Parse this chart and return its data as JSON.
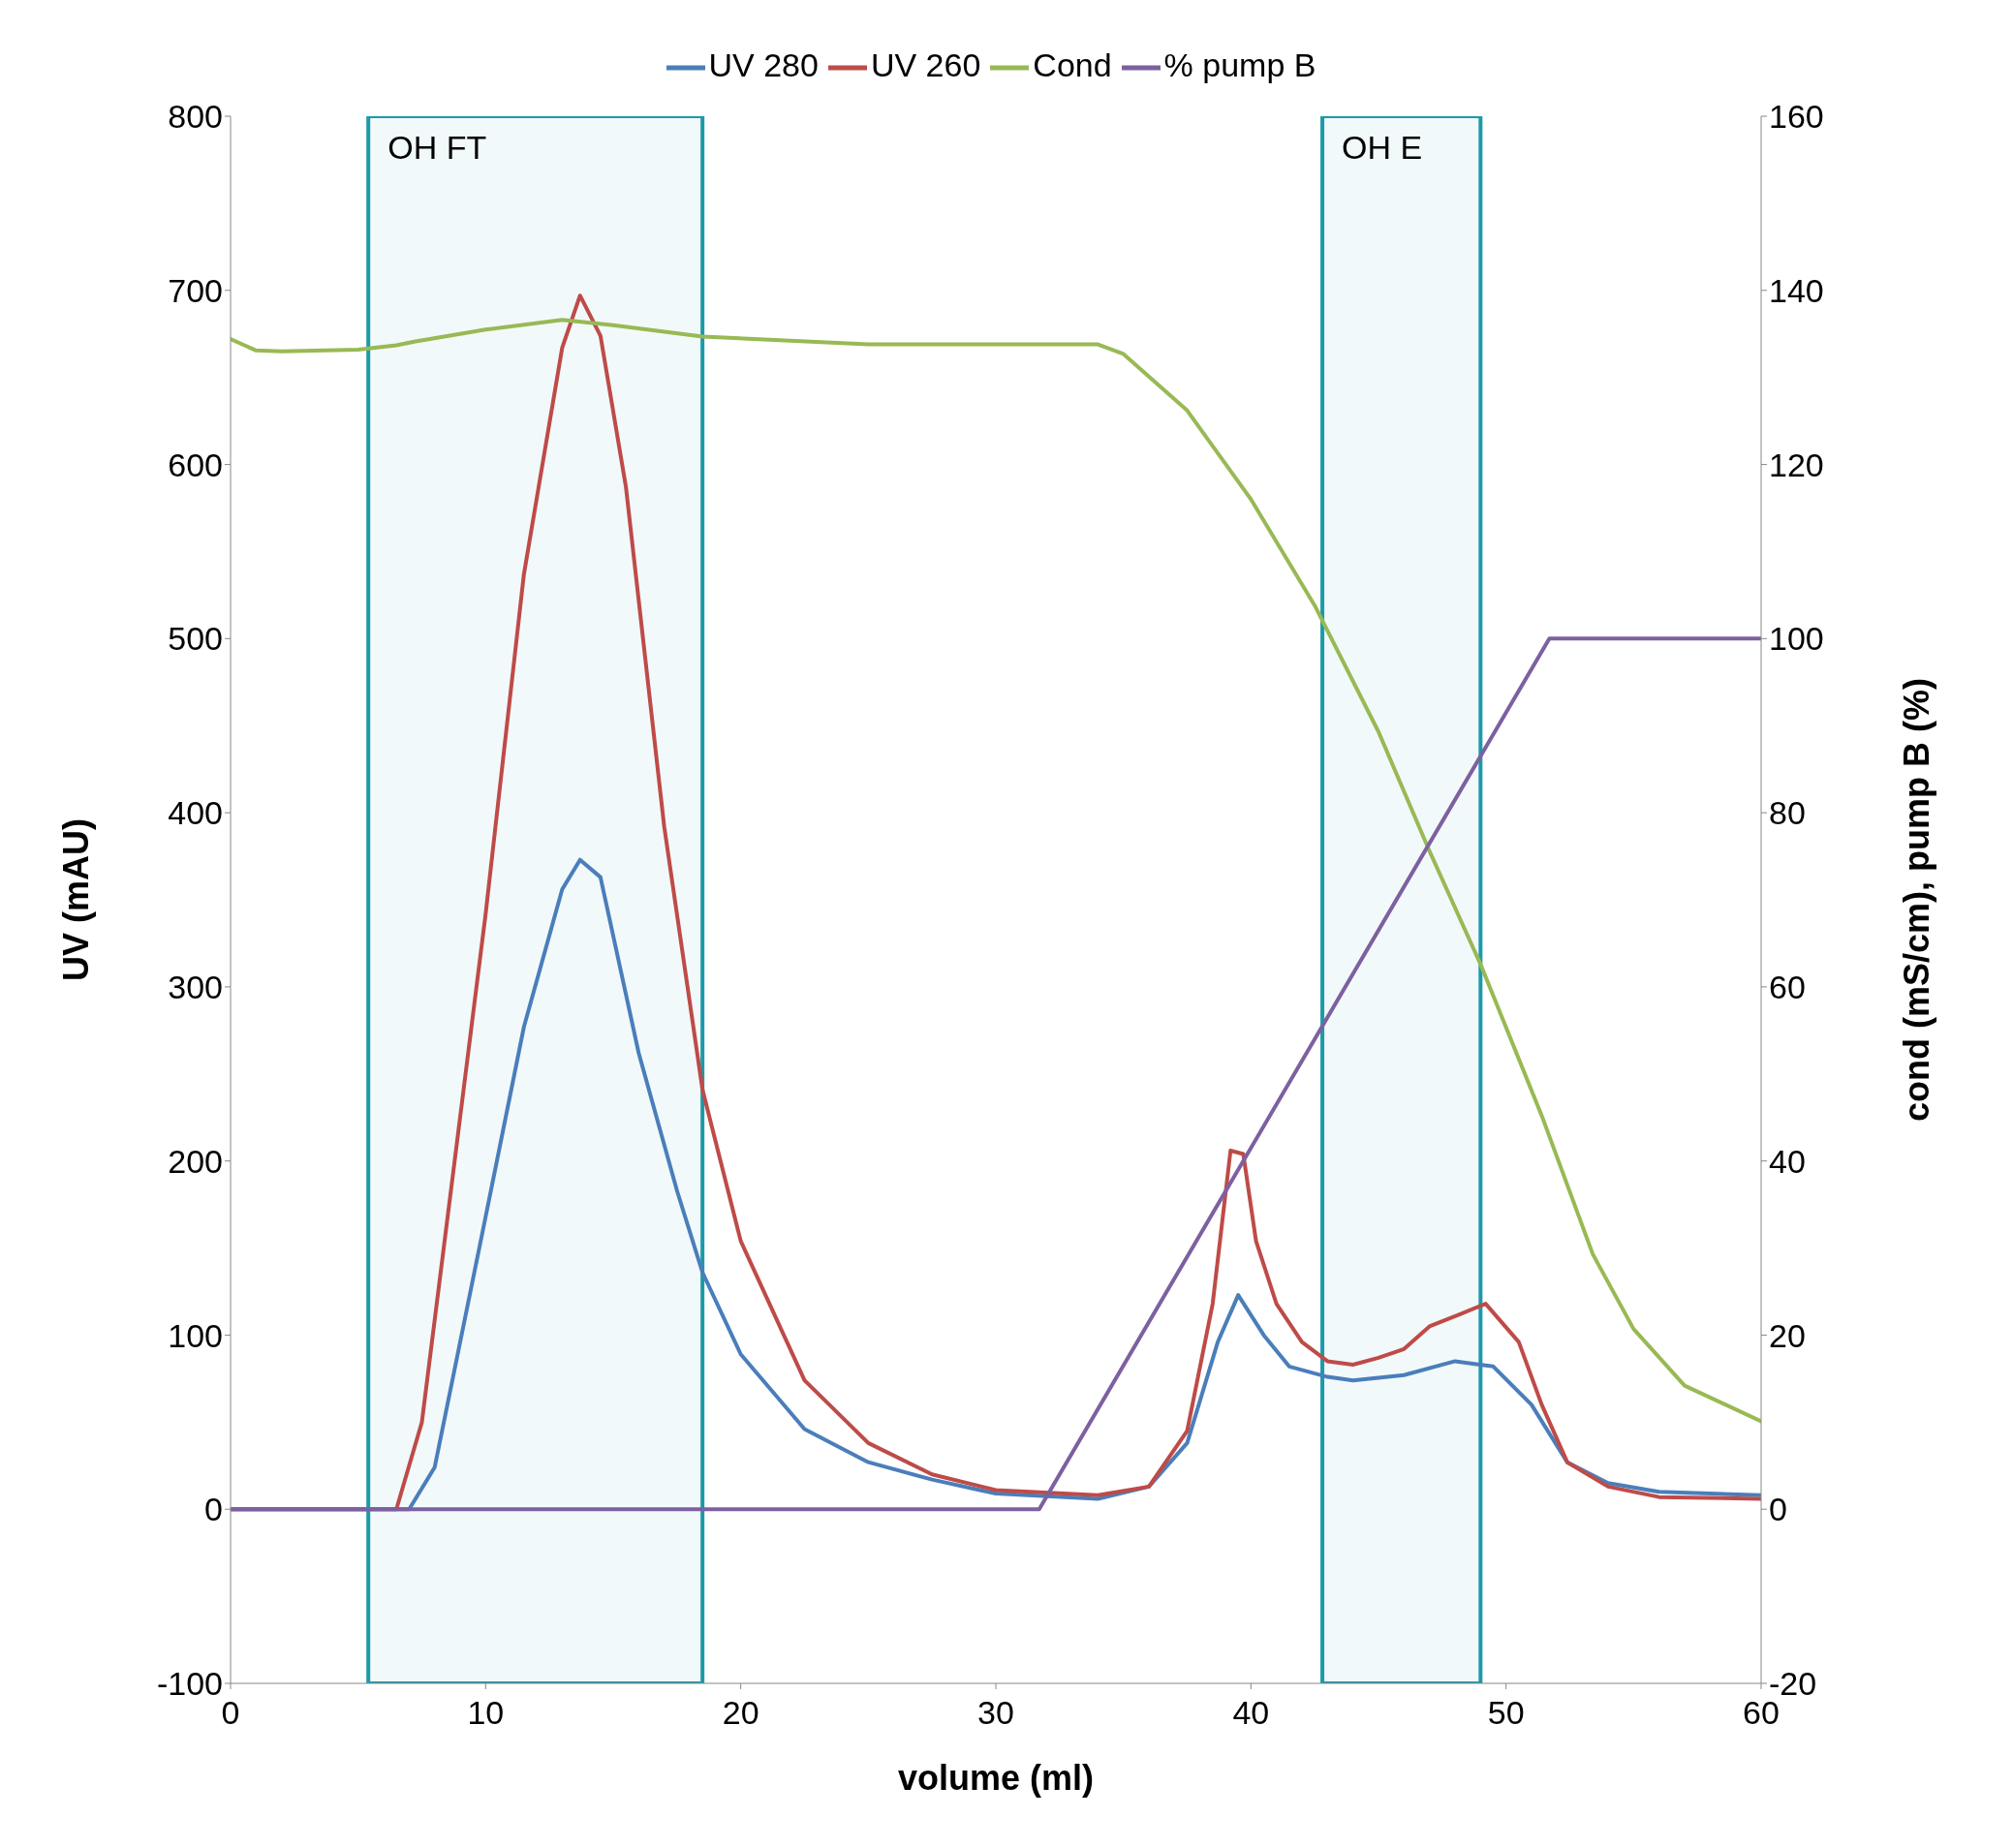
{
  "chart_data": {
    "type": "line",
    "xlabel": "volume (ml)",
    "ylabel": "UV (mAU)",
    "y2label": "cond (mS/cm), pump B (%)",
    "xlim": [
      0,
      60
    ],
    "xticks": [
      0,
      10,
      20,
      30,
      40,
      50,
      60
    ],
    "ylim": [
      -100,
      800
    ],
    "yticks": [
      -100,
      0,
      100,
      200,
      300,
      400,
      500,
      600,
      700,
      800
    ],
    "y2lim": [
      -20,
      160
    ],
    "y2ticks": [
      -20,
      0,
      20,
      40,
      60,
      80,
      100,
      120,
      140,
      160
    ],
    "legend": "top",
    "marker": "none",
    "line_style": "solid",
    "series": [
      {
        "name": "UV 280",
        "color": "#4a7ebb",
        "x": [
          0,
          5,
          7,
          8,
          10,
          11.5,
          13,
          13.7,
          14.5,
          16,
          17.5,
          18.5,
          20,
          22.5,
          25,
          27.5,
          30,
          34,
          36,
          37.5,
          38.7,
          39.5,
          40.5,
          41.5,
          43,
          44,
          46,
          48,
          49.5,
          51,
          52.4,
          54,
          56,
          60
        ],
        "values": [
          0,
          0,
          0,
          24,
          168,
          277,
          356,
          373,
          363,
          262,
          183,
          136,
          89,
          46,
          27,
          17,
          9,
          6,
          13,
          38,
          96,
          123,
          100,
          82,
          76,
          74,
          77,
          85,
          82,
          60,
          27,
          15,
          10,
          8
        ]
      },
      {
        "name": "UV 260",
        "color": "#be4b48",
        "x": [
          0,
          5,
          6.5,
          7.5,
          10,
          11.5,
          13,
          13.7,
          14.5,
          15.5,
          17,
          18.5,
          20,
          22.5,
          25,
          27.5,
          30,
          34,
          36,
          37.5,
          38.5,
          39.2,
          39.7,
          40.2,
          41,
          42,
          43,
          44,
          45,
          46,
          47,
          48.2,
          49.2,
          50.5,
          51.4,
          52.4,
          54,
          56,
          60
        ],
        "values": [
          0,
          0,
          0,
          50,
          342,
          537,
          667,
          697,
          674,
          587,
          392,
          241,
          154,
          74,
          38,
          20,
          11,
          8,
          13,
          45,
          118,
          206,
          204,
          154,
          118,
          96,
          85,
          83,
          87,
          92,
          105,
          112,
          118,
          96,
          60,
          27,
          13,
          7,
          6
        ]
      },
      {
        "name": "Cond",
        "color": "#98b954",
        "axis": "y2",
        "x": [
          0,
          1,
          2,
          5,
          6.5,
          7.2,
          10,
          13,
          15,
          18.5,
          25,
          34,
          35,
          37.5,
          40,
          42.5,
          45,
          47,
          49,
          51.4,
          53.4,
          55,
          57,
          60
        ],
        "values": [
          134.4,
          133.1,
          133,
          133.2,
          133.7,
          134.1,
          135.5,
          136.6,
          136,
          134.7,
          133.8,
          133.8,
          132.7,
          126.2,
          116,
          103.8,
          89.3,
          75.6,
          62.6,
          45.2,
          29.3,
          20.7,
          14.2,
          10.1
        ]
      },
      {
        "name": "% pump B",
        "color": "#7d60a0",
        "axis": "y2",
        "x": [
          0,
          31.7,
          51.7,
          60
        ],
        "values": [
          0,
          0,
          100,
          100
        ]
      }
    ],
    "bands": [
      {
        "axis": "x",
        "from": 5.4,
        "to": 18.5,
        "label": "OH FT",
        "color": "#1b9aaa"
      },
      {
        "axis": "x",
        "from": 42.8,
        "to": 49,
        "label": "OH E",
        "color": "#1b9aaa"
      }
    ]
  }
}
